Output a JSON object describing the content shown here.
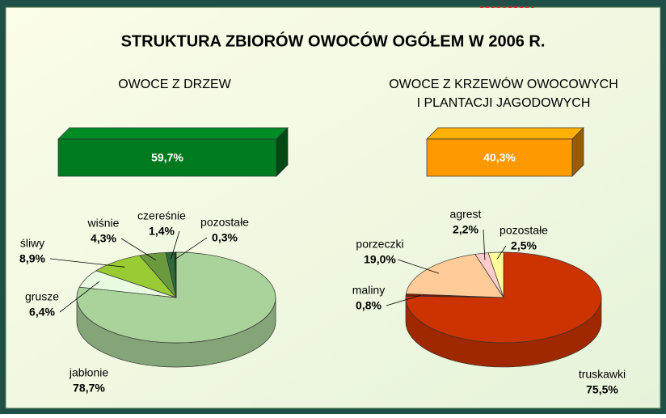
{
  "title": "STRUKTURA ZBIORÓW OWOCÓW OGÓŁEM W 2006 R.",
  "chart_data": [
    {
      "type": "pie",
      "title": [
        "OWOCE Z DRZEW"
      ],
      "share": 59.7,
      "share_label": "59,7%",
      "share_color": "#007a1f",
      "categories": [
        "jabłonie",
        "grusze",
        "śliwy",
        "wiśnie",
        "czereśnie",
        "pozostałe"
      ],
      "values": [
        78.7,
        6.4,
        8.9,
        4.3,
        1.4,
        0.3
      ],
      "value_labels": [
        "78,7%",
        "6,4%",
        "8,9%",
        "4,3%",
        "1,4%",
        "0,3%"
      ],
      "colors": [
        "#a9d39a",
        "#e8fbe0",
        "#99cc33",
        "#6b9a3e",
        "#2e6b3a",
        "#0b3d1a"
      ]
    },
    {
      "type": "pie",
      "title": [
        "OWOCE Z KRZEWÓW OWOCOWYCH",
        "I PLANTACJI JAGODOWYCH"
      ],
      "share": 40.3,
      "share_label": "40,3%",
      "share_color": "#ff9900",
      "categories": [
        "truskawki",
        "maliny",
        "porzeczki",
        "agrest",
        "pozostałe"
      ],
      "values": [
        75.5,
        0.8,
        19.0,
        2.2,
        2.5
      ],
      "value_labels": [
        "75,5%",
        "0,8%",
        "19,0%",
        "2,2%",
        "2,5%"
      ],
      "colors": [
        "#cc3300",
        "#7a1a00",
        "#ffcc99",
        "#ffcccc",
        "#ffff99"
      ]
    }
  ]
}
